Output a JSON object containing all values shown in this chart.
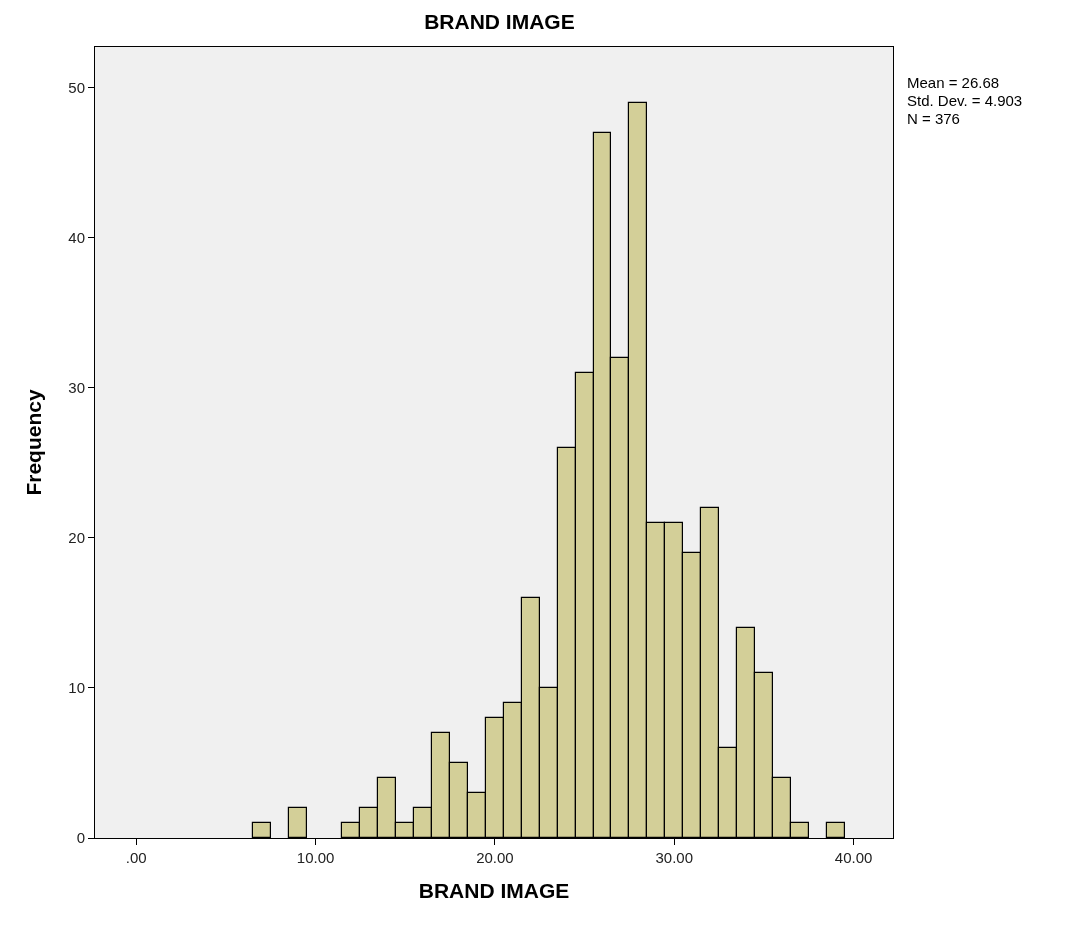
{
  "chart_data": {
    "type": "histogram",
    "title": "BRAND IMAGE",
    "xlabel": "BRAND IMAGE",
    "ylabel": "Frequency",
    "bins": [
      6.5,
      7.5,
      8.5,
      9.5,
      10.5,
      11.5,
      12.5,
      13.5,
      14.5,
      15.5,
      16.5,
      17.5,
      18.5,
      19.5,
      20.5,
      21.5,
      22.5,
      23.5,
      24.5,
      25.5,
      26.5,
      27.5,
      28.5,
      29.5,
      30.5,
      31.5,
      32.5,
      33.5,
      34.5,
      35.5,
      36.5,
      37.5,
      38.5,
      39.5
    ],
    "values": [
      1,
      0,
      2,
      0,
      0,
      1,
      2,
      4,
      1,
      2,
      7,
      5,
      3,
      8,
      9,
      16,
      10,
      26,
      31,
      47,
      32,
      49,
      21,
      21,
      19,
      22,
      6,
      14,
      11,
      4,
      1,
      0,
      1
    ],
    "color": "#d3cf98",
    "xlim": [
      -2.3,
      42.2
    ],
    "ylim": [
      0,
      52.7
    ],
    "xticks": [
      {
        "value": 0,
        "label": ".00"
      },
      {
        "value": 10,
        "label": "10.00"
      },
      {
        "value": 20,
        "label": "20.00"
      },
      {
        "value": 30,
        "label": "30.00"
      },
      {
        "value": 40,
        "label": "40.00"
      }
    ],
    "yticks": [
      0,
      10,
      20,
      30,
      40,
      50
    ],
    "annotations": [
      "Mean = 26.68",
      "Std. Dev. = 4.903",
      "N = 376"
    ]
  }
}
